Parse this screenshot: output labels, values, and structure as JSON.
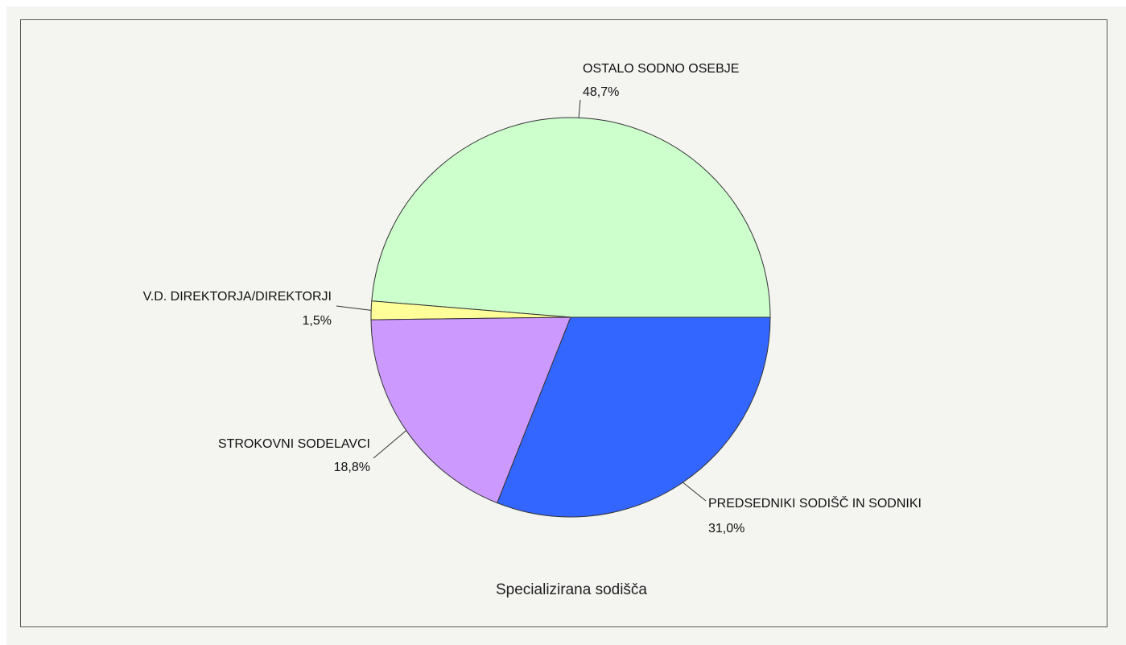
{
  "chart_data": {
    "type": "pie",
    "title": "Specializirana sodišča",
    "slices": [
      {
        "label": "OSTALO SODNO OSEBJE",
        "value": 48.7,
        "pct_label": "48,7%",
        "color": "#ccffcc"
      },
      {
        "label": "PREDSEDNIKI SODIŠČ IN SODNIKI",
        "value": 31.0,
        "pct_label": "31,0%",
        "color": "#3366ff"
      },
      {
        "label": "STROKOVNI SODELAVCI",
        "value": 18.8,
        "pct_label": "18,8%",
        "color": "#cc99ff"
      },
      {
        "label": "V.D. DIREKTORJA/DIREKTORJI",
        "value": 1.5,
        "pct_label": "1,5%",
        "color": "#ffff99"
      }
    ],
    "legend": "none",
    "outline_color": "#333333"
  }
}
